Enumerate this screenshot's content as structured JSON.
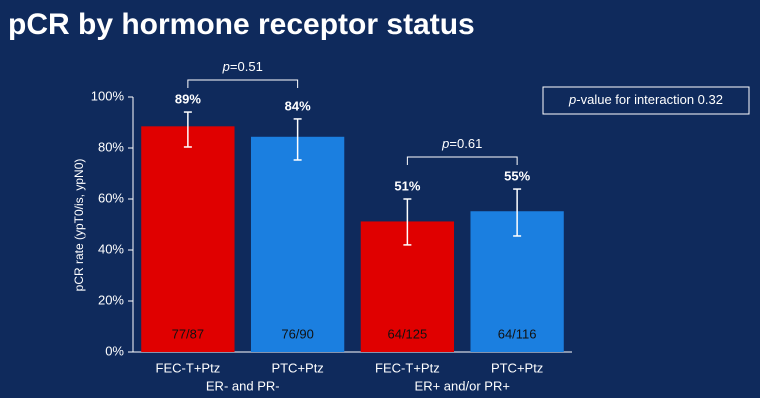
{
  "chart_data": {
    "type": "bar",
    "title": "pCR by hormone receptor status",
    "y_label": "pCR rate (ypT0/is, ypN0)",
    "categories": [
      "FEC-T+Ptz",
      "PTC+Ptz",
      "FEC-T+Ptz",
      "PTC+Ptz"
    ],
    "groups": [
      {
        "label": "ER- and PR-",
        "categories": [
          0,
          1
        ]
      },
      {
        "label": "ER+ and/or PR+",
        "categories": [
          2,
          3
        ]
      }
    ],
    "values": [
      88.5,
      84.4,
      51.2,
      55.2
    ],
    "value_labels": [
      "89%",
      "84%",
      "51%",
      "55%"
    ],
    "ci_low": [
      80.4,
      75.3,
      42,
      45.5
    ],
    "ci_high": [
      94.1,
      91.4,
      60,
      63.9
    ],
    "counts": [
      "77/87",
      "76/90",
      "64/125",
      "64/116"
    ],
    "colors": [
      "#e00000",
      "#1b7fe0",
      "#e00000",
      "#1b7fe0"
    ],
    "comparisons": [
      {
        "label": "p=0.51",
        "categories": [
          0,
          1
        ]
      },
      {
        "label": "p=0.61",
        "categories": [
          2,
          3
        ]
      }
    ],
    "interaction_label": "p-value for interaction 0.32",
    "ylim": [
      0,
      100
    ],
    "yticks": [
      {
        "value": 0,
        "label": "0%"
      },
      {
        "value": 20,
        "label": "20%"
      },
      {
        "value": 40,
        "label": "40%"
      },
      {
        "value": 60,
        "label": "60%"
      },
      {
        "value": 80,
        "label": "80%"
      },
      {
        "value": 100,
        "label": "100%"
      }
    ]
  }
}
